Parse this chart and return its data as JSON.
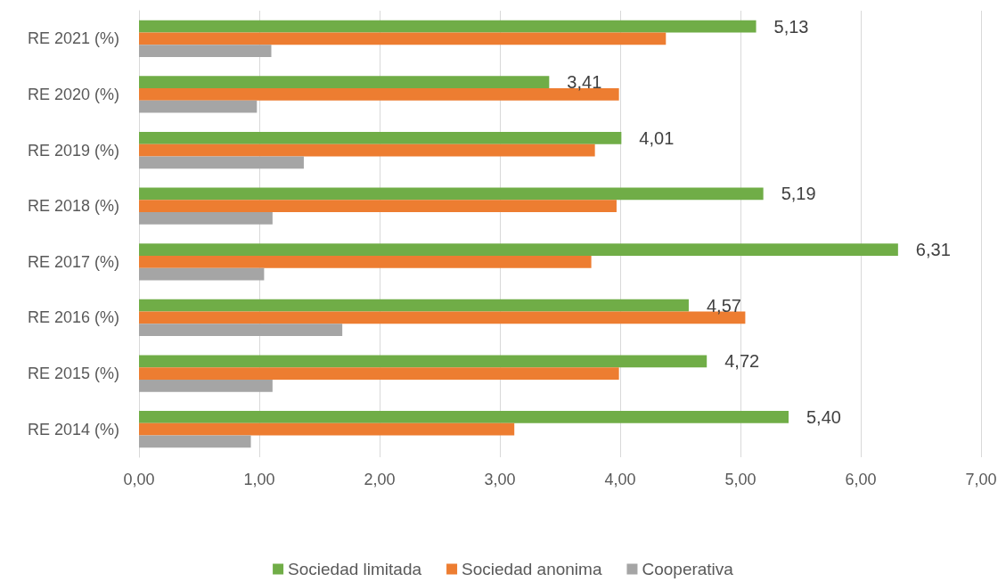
{
  "chart_data": {
    "type": "bar",
    "orientation": "horizontal",
    "categories": [
      "RE 2021 (%)",
      "RE 2020 (%)",
      "RE 2019 (%)",
      "RE 2018 (%)",
      "RE 2017 (%)",
      "RE 2016 (%)",
      "RE 2015 (%)",
      "RE 2014 (%)"
    ],
    "series": [
      {
        "name": "Sociedad limitada",
        "color": "#70ad47",
        "values": [
          5.13,
          3.41,
          4.01,
          5.19,
          6.31,
          4.57,
          4.72,
          5.4
        ],
        "value_labels": [
          "5,13",
          "3,41",
          "4,01",
          "5,19",
          "6,31",
          "4,57",
          "4,72",
          "5,40"
        ]
      },
      {
        "name": "Sociedad anonima",
        "color": "#ed7d31",
        "values": [
          4.38,
          3.99,
          3.79,
          3.97,
          3.76,
          5.04,
          3.99,
          3.12
        ]
      },
      {
        "name": "Cooperativa",
        "color": "#a5a5a5",
        "values": [
          1.1,
          0.98,
          1.37,
          1.11,
          1.04,
          1.69,
          1.11,
          0.93
        ]
      }
    ],
    "xlim": [
      0,
      7
    ],
    "xticks": [
      {
        "value": 0,
        "label": "0,00"
      },
      {
        "value": 1,
        "label": "1,00"
      },
      {
        "value": 2,
        "label": "2,00"
      },
      {
        "value": 3,
        "label": "3,00"
      },
      {
        "value": 4,
        "label": "4,00"
      },
      {
        "value": 5,
        "label": "5,00"
      },
      {
        "value": 6,
        "label": "6,00"
      },
      {
        "value": 7,
        "label": "7,00"
      }
    ],
    "grid": "x",
    "legend": "bottom"
  }
}
